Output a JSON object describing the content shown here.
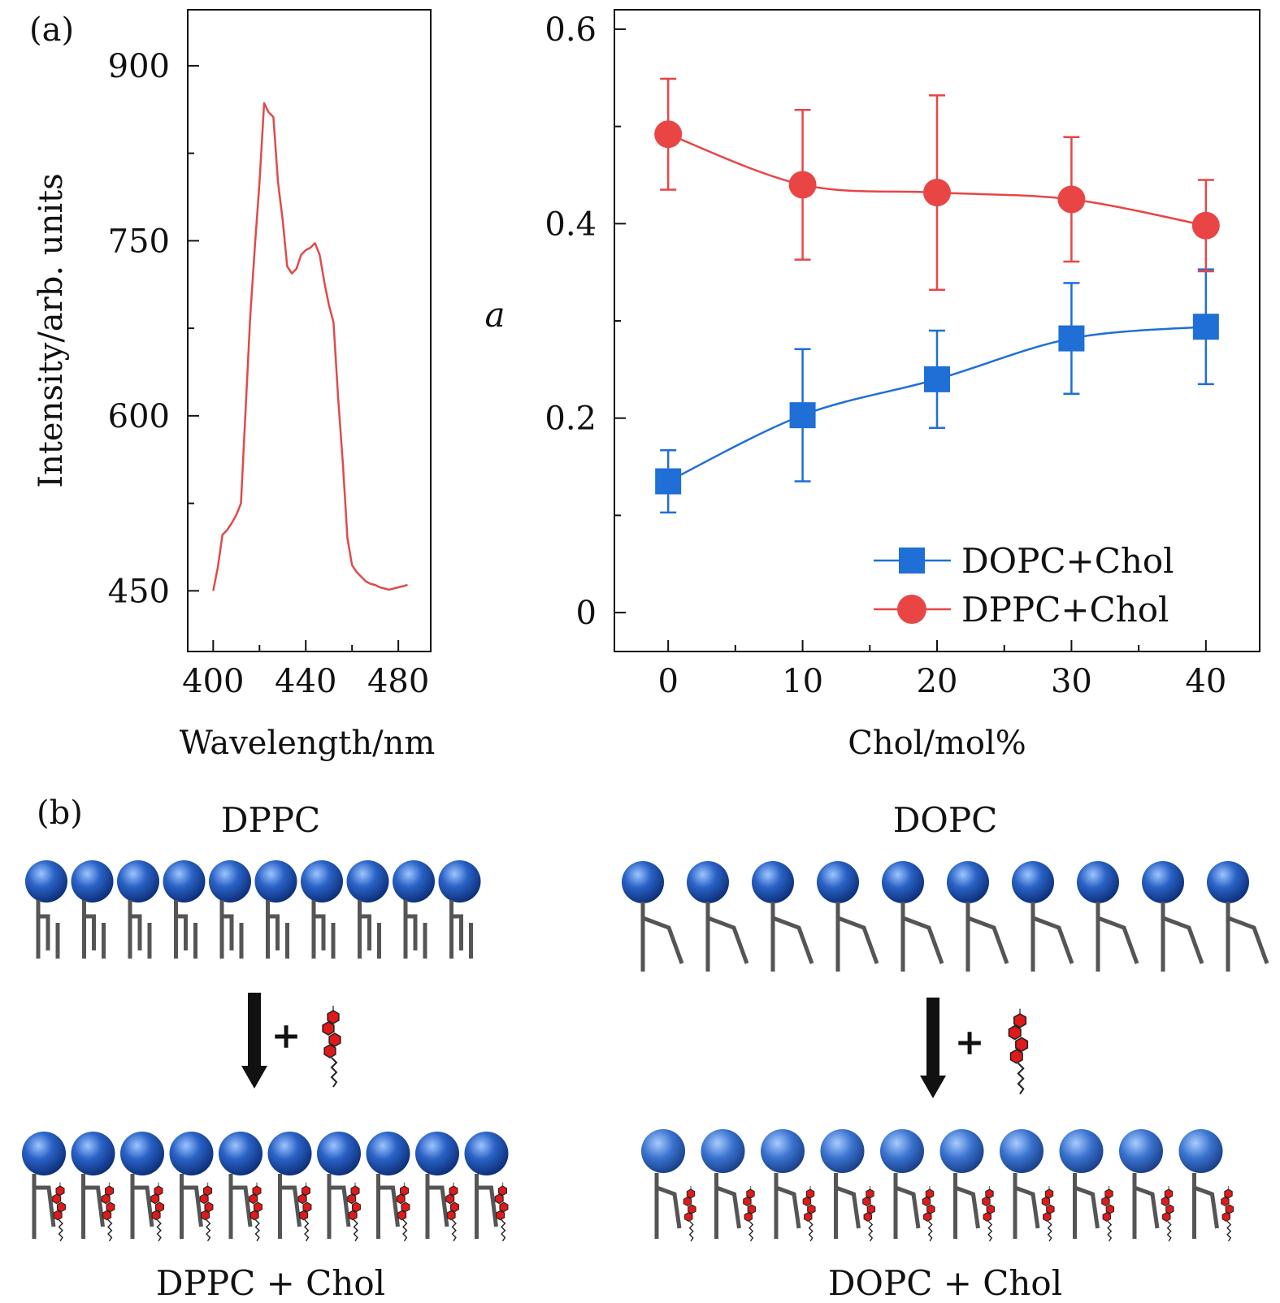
{
  "chart_data": [
    {
      "panel": "(a)",
      "type": "line",
      "xlabel": "Wavelength/nm",
      "ylabel": "Intensity/arb. units",
      "xlim": [
        389,
        494
      ],
      "ylim": [
        398,
        948
      ],
      "xticks": [
        400,
        440,
        480
      ],
      "yticks": [
        450,
        600,
        750,
        900
      ],
      "color": "#e04a4a",
      "series": [
        {
          "name": "spectrum",
          "x": [
            400,
            402,
            404,
            406,
            408,
            410,
            412,
            414,
            416,
            418,
            420,
            422,
            424,
            426,
            428,
            430,
            432,
            434,
            436,
            438,
            440,
            442,
            444,
            446,
            448,
            450,
            452,
            454,
            456,
            458,
            460,
            462,
            464,
            466,
            468,
            470,
            472,
            474,
            476,
            478,
            480,
            482,
            484
          ],
          "y": [
            450,
            470,
            498,
            502,
            508,
            515,
            525,
            605,
            685,
            745,
            800,
            868,
            860,
            856,
            800,
            768,
            728,
            722,
            726,
            738,
            742,
            744,
            748,
            738,
            715,
            695,
            680,
            615,
            560,
            495,
            472,
            466,
            462,
            458,
            456,
            455,
            453,
            452,
            451,
            452,
            453,
            454,
            455
          ]
        }
      ]
    },
    {
      "panel": "(a)",
      "type": "line",
      "xlabel": "Chol/mol%",
      "ylabel": "a",
      "xlim": [
        -4,
        44
      ],
      "ylim": [
        -0.04,
        0.62
      ],
      "xticks": [
        0,
        10,
        20,
        30,
        40
      ],
      "yticks": [
        0,
        0.2,
        0.4,
        0.6
      ],
      "series": [
        {
          "name": "DOPC+Chol",
          "color": "#1f6fd6",
          "marker": "square",
          "x": [
            0,
            10,
            20,
            30,
            40
          ],
          "values": [
            0.135,
            0.203,
            0.24,
            0.282,
            0.294
          ],
          "errors": [
            0.032,
            0.068,
            0.05,
            0.057,
            0.059
          ]
        },
        {
          "name": "DPPC+Chol",
          "color": "#e94545",
          "marker": "circle",
          "x": [
            0,
            10,
            20,
            30,
            40
          ],
          "values": [
            0.492,
            0.44,
            0.432,
            0.425,
            0.398
          ],
          "errors": [
            0.057,
            0.077,
            0.1,
            0.064,
            0.047
          ]
        }
      ],
      "legend": "bottom-right"
    }
  ],
  "panel_b": {
    "label": "(b)",
    "left": {
      "top_label": "DPPC",
      "bottom_label": "DPPC + Chol",
      "plus": "+"
    },
    "right": {
      "top_label": "DOPC",
      "bottom_label": "DOPC + Chol",
      "plus": "+"
    }
  },
  "colors": {
    "lipid_head": "#2a62c6",
    "tail": "#555555",
    "chol": "#e0191a"
  }
}
